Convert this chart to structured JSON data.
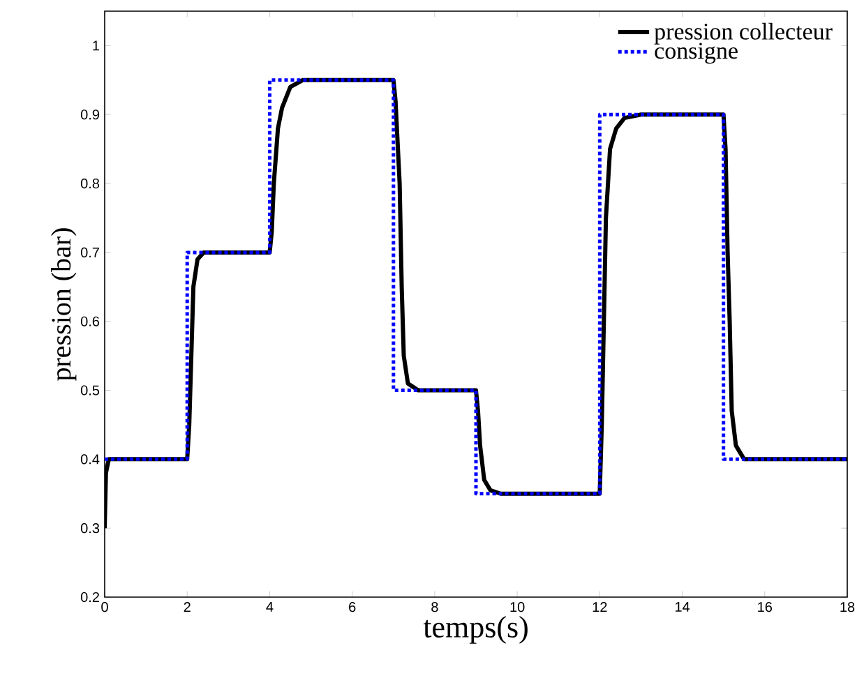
{
  "chart_data": {
    "type": "line",
    "xlabel": "temps(s)",
    "ylabel": "pression (bar)",
    "xlim": [
      0,
      18
    ],
    "ylim": [
      0.2,
      1.05
    ],
    "xticks": [
      0,
      2,
      4,
      6,
      8,
      10,
      12,
      14,
      16,
      18
    ],
    "yticks": [
      0.2,
      0.3,
      0.4,
      0.5,
      0.6,
      0.7,
      0.8,
      0.9,
      1
    ],
    "legend": "top right",
    "grid": false,
    "series": [
      {
        "name": "pression collecteur",
        "color": "#000000",
        "line_style": "solid",
        "x": [
          0,
          0.03,
          0.1,
          2.0,
          2.05,
          2.1,
          2.15,
          2.25,
          2.4,
          4.0,
          4.05,
          4.1,
          4.2,
          4.3,
          4.5,
          4.8,
          7.0,
          7.05,
          7.15,
          7.2,
          7.25,
          7.35,
          7.6,
          9.0,
          9.05,
          9.1,
          9.2,
          9.35,
          9.6,
          12.0,
          12.05,
          12.1,
          12.15,
          12.25,
          12.4,
          12.6,
          13.0,
          15.0,
          15.05,
          15.1,
          15.15,
          15.2,
          15.3,
          15.5,
          18
        ],
        "values": [
          0.3,
          0.38,
          0.4,
          0.4,
          0.45,
          0.55,
          0.65,
          0.69,
          0.7,
          0.7,
          0.73,
          0.8,
          0.88,
          0.91,
          0.94,
          0.95,
          0.95,
          0.92,
          0.8,
          0.65,
          0.55,
          0.51,
          0.5,
          0.5,
          0.47,
          0.42,
          0.37,
          0.355,
          0.35,
          0.35,
          0.45,
          0.6,
          0.75,
          0.85,
          0.88,
          0.895,
          0.9,
          0.9,
          0.85,
          0.7,
          0.6,
          0.47,
          0.42,
          0.4,
          0.4
        ]
      },
      {
        "name": "consigne",
        "type": "step",
        "color": "#0000ff",
        "line_style": "dotted",
        "x": [
          0,
          2,
          4,
          7,
          9,
          12,
          15,
          18
        ],
        "values": [
          0.4,
          0.7,
          0.95,
          0.5,
          0.35,
          0.9,
          0.4,
          0.4
        ]
      }
    ]
  }
}
